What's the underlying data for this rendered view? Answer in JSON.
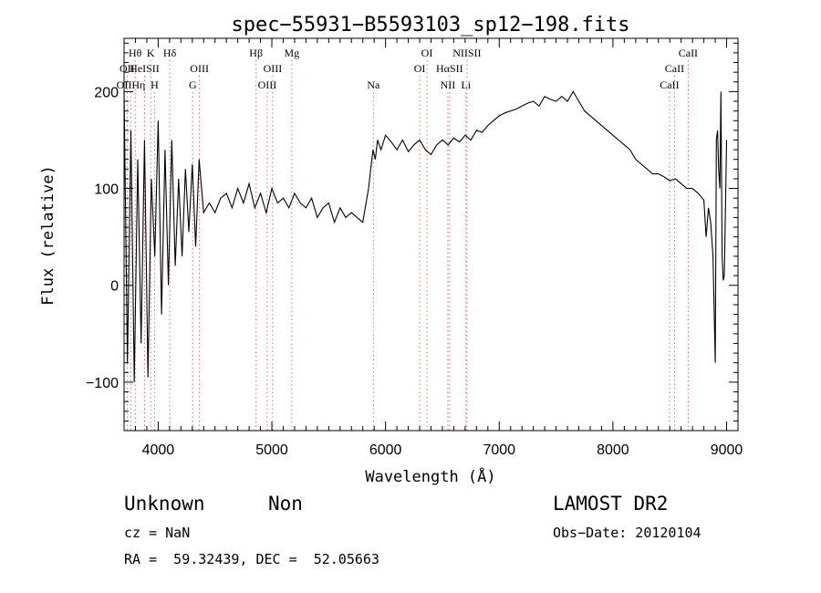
{
  "chart_data": {
    "type": "line",
    "title": "spec−55931−B5593103_sp12−198.fits",
    "xlabel": "Wavelength (Å)",
    "ylabel": "Flux (relative)",
    "xlim": [
      3700,
      9100
    ],
    "ylim": [
      -150,
      255
    ],
    "x_ticks": [
      4000,
      5000,
      6000,
      7000,
      8000,
      9000
    ],
    "y_ticks": [
      -100,
      0,
      100,
      200
    ],
    "y_tick_labels": [
      "−100",
      "0",
      "100",
      "200"
    ],
    "grid": false,
    "colors": {
      "line": "#000000",
      "marker": "#e07070",
      "axis": "#000000"
    },
    "series": [
      {
        "x": [
          3700,
          3730,
          3760,
          3790,
          3820,
          3850,
          3880,
          3910,
          3940,
          3970,
          4000,
          4030,
          4060,
          4090,
          4120,
          4150,
          4180,
          4210,
          4240,
          4270,
          4300,
          4330,
          4360,
          4400,
          4450,
          4500,
          4550,
          4600,
          4650,
          4700,
          4750,
          4800,
          4850,
          4900,
          4950,
          5000,
          5050,
          5100,
          5150,
          5200,
          5250,
          5300,
          5350,
          5400,
          5450,
          5500,
          5550,
          5600,
          5650,
          5700,
          5750,
          5800,
          5850,
          5870,
          5890,
          5910,
          5930,
          5960,
          6000,
          6050,
          6100,
          6150,
          6200,
          6250,
          6300,
          6350,
          6400,
          6450,
          6500,
          6550,
          6600,
          6650,
          6700,
          6750,
          6800,
          6850,
          6900,
          6950,
          7000,
          7050,
          7100,
          7150,
          7200,
          7250,
          7300,
          7350,
          7400,
          7450,
          7500,
          7550,
          7600,
          7650,
          7700,
          7750,
          7800,
          7850,
          7900,
          7950,
          8000,
          8050,
          8100,
          8150,
          8200,
          8250,
          8300,
          8350,
          8400,
          8450,
          8500,
          8550,
          8600,
          8650,
          8700,
          8750,
          8800,
          8820,
          8840,
          8860,
          8880,
          8900,
          8910,
          8920,
          8930,
          8940,
          8950,
          8960,
          8970,
          8980,
          8990,
          9000
        ],
        "y": [
          200,
          -80,
          160,
          -100,
          130,
          -60,
          150,
          -95,
          110,
          30,
          170,
          -30,
          140,
          0,
          150,
          20,
          110,
          30,
          120,
          55,
          125,
          40,
          130,
          75,
          85,
          75,
          90,
          95,
          80,
          100,
          85,
          105,
          80,
          95,
          75,
          100,
          85,
          90,
          80,
          95,
          85,
          80,
          90,
          70,
          80,
          85,
          65,
          80,
          70,
          75,
          70,
          65,
          100,
          120,
          140,
          130,
          150,
          140,
          155,
          148,
          140,
          150,
          138,
          145,
          150,
          140,
          135,
          145,
          150,
          145,
          152,
          148,
          155,
          150,
          160,
          158,
          165,
          170,
          175,
          178,
          180,
          182,
          185,
          188,
          190,
          185,
          195,
          192,
          190,
          195,
          190,
          200,
          190,
          180,
          175,
          170,
          165,
          160,
          155,
          150,
          145,
          140,
          130,
          125,
          120,
          115,
          115,
          112,
          108,
          110,
          105,
          100,
          100,
          95,
          88,
          50,
          80,
          65,
          30,
          -80,
          150,
          160,
          120,
          100,
          200,
          30,
          5,
          10,
          80,
          150
        ]
      }
    ],
    "spectral_lines": [
      {
        "label": "Hθ",
        "x": 3798,
        "row": 1
      },
      {
        "label": "K",
        "x": 3934,
        "row": 1
      },
      {
        "label": "Hδ",
        "x": 4102,
        "row": 1
      },
      {
        "label": "Hβ",
        "x": 4861,
        "row": 1
      },
      {
        "label": "Mg",
        "x": 5175,
        "row": 1
      },
      {
        "label": "OI",
        "x": 6364,
        "row": 1
      },
      {
        "label": "NIISII",
        "x": 6716,
        "row": 1
      },
      {
        "label": "CaII",
        "x": 8662,
        "row": 1
      },
      {
        "label": "OII",
        "x": 3727,
        "row": 2
      },
      {
        "label": "HeISII",
        "x": 3880,
        "row": 2
      },
      {
        "label": "OIII",
        "x": 4363,
        "row": 2
      },
      {
        "label": "OIII",
        "x": 5007,
        "row": 2
      },
      {
        "label": "OI",
        "x": 6300,
        "row": 2
      },
      {
        "label": "HαSII",
        "x": 6563,
        "row": 2
      },
      {
        "label": "CaII",
        "x": 8542,
        "row": 2
      },
      {
        "label": "OIIHη",
        "x": 3760,
        "row": 3
      },
      {
        "label": "H",
        "x": 3968,
        "row": 3
      },
      {
        "label": "G",
        "x": 4304,
        "row": 3
      },
      {
        "label": "OIII",
        "x": 4959,
        "row": 3
      },
      {
        "label": "Na",
        "x": 5893,
        "row": 3
      },
      {
        "label": "NII",
        "x": 6548,
        "row": 3
      },
      {
        "label": "Li",
        "x": 6707,
        "row": 3
      },
      {
        "label": "CaII",
        "x": 8498,
        "row": 3
      }
    ]
  },
  "info": {
    "class": "Unknown",
    "subclass": "Non",
    "survey": "LAMOST DR2",
    "cz": "cz = NaN",
    "obs_date": "Obs−Date: 20120104",
    "coords": "RA =  59.32439, DEC =  52.05663"
  }
}
